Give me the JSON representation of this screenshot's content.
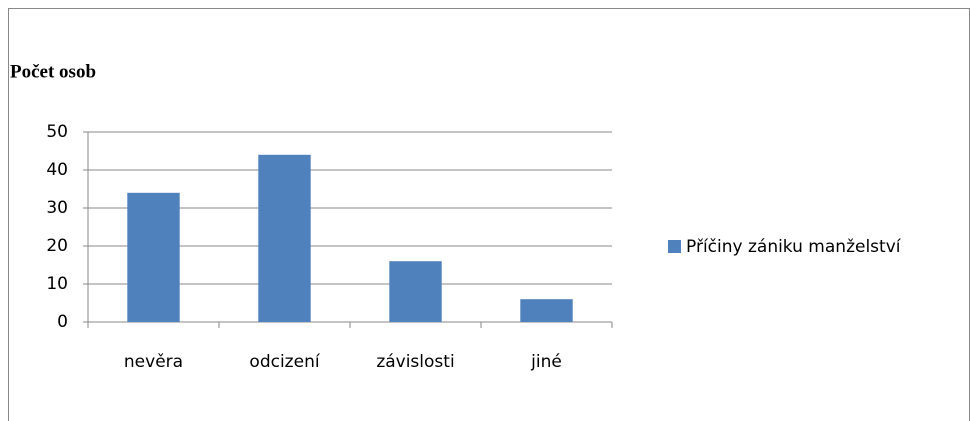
{
  "chart_data": {
    "type": "bar",
    "title": "Počet osob",
    "categories": [
      "nevěra",
      "odcizení",
      "závislosti",
      "jiné"
    ],
    "series": [
      {
        "name": "Příčiny zániku manželství",
        "color": "#4f81bd",
        "values": [
          34,
          44,
          16,
          6
        ]
      }
    ],
    "ylim": [
      0,
      50
    ],
    "yticks": [
      0,
      10,
      20,
      30,
      40,
      50
    ],
    "grid": true,
    "legend": "right"
  }
}
